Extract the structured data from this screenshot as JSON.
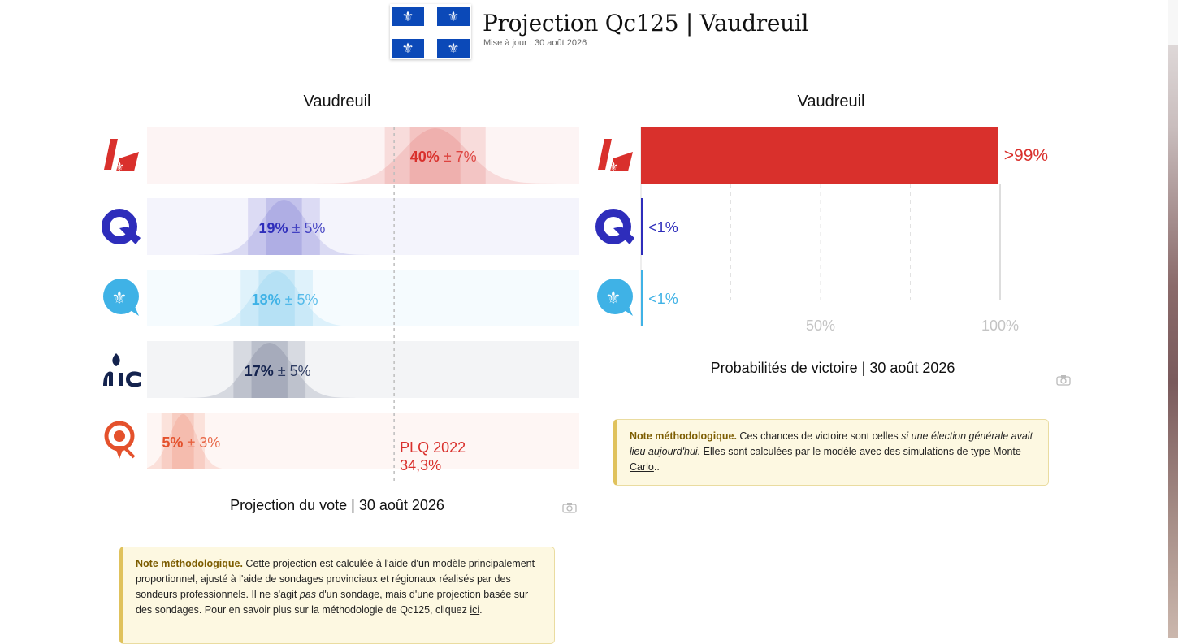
{
  "header": {
    "title": "Projection Qc125 | Vaudreuil",
    "subtitle": "Mise à jour : 30 août 2026",
    "flag_glyph": "⚜",
    "flag_color": "#0b49b8"
  },
  "left": {
    "title": "Vaudreuil",
    "caption": "Projection du vote | 30 août 2026",
    "reference_label_1": "PLQ 2022",
    "reference_label_2": "34,3%",
    "note": {
      "lead": "Note méthodologique.",
      "text1": " Cette projection est calculée à l'aide d'un modèle principalement proportionnel, ajusté à l'aide de sondages provinciaux et régionaux réalisés par des sondeurs professionnels. Il ne s'agit ",
      "em": "pas",
      "text2": " d'un sondage, mais d'une projection basée sur des sondages. Pour en savoir plus sur la méthodologie de Qc125, cliquez ",
      "link": "ici",
      "text3": "."
    }
  },
  "right": {
    "title": "Vaudreuil",
    "caption": "Probabilités de victoire | 30 août 2026",
    "note": {
      "lead": "Note méthodologique.",
      "text1": " Ces chances de victoire sont celles ",
      "em": "si une élection générale avait lieu aujourd'hui.",
      "text2": " Elles sont calculées par le modèle avec des simulations de type ",
      "link": "Monte Carlo",
      "text3": ".."
    }
  },
  "parties": [
    {
      "logo": "plq-logo",
      "color": "#d9302c"
    },
    {
      "logo": "caq-logo",
      "color": "#2e2dbb"
    },
    {
      "logo": "pq-logo",
      "color": "#3fb2e6"
    },
    {
      "logo": "pcq-logo",
      "color": "#14234e"
    },
    {
      "logo": "qs-logo",
      "color": "#e4512c"
    }
  ],
  "chart_data": [
    {
      "type": "bar",
      "title": "Vaudreuil",
      "caption": "Projection du vote | 30 août 2026",
      "series": [
        {
          "value": 40,
          "margin": 7,
          "label": "40%",
          "margin_label": "± 7%",
          "color": "#d9302c"
        },
        {
          "value": 19,
          "margin": 5,
          "label": "19%",
          "margin_label": "± 5%",
          "color": "#2e2dbb"
        },
        {
          "value": 18,
          "margin": 5,
          "label": "18%",
          "margin_label": "± 5%",
          "color": "#3fb2e6"
        },
        {
          "value": 17,
          "margin": 5,
          "label": "17%",
          "margin_label": "± 5%",
          "color": "#14234e"
        },
        {
          "value": 5,
          "margin": 3,
          "label": "5%",
          "margin_label": "± 3%",
          "color": "#e4512c"
        }
      ],
      "xlim": [
        0,
        60
      ],
      "reference": {
        "value": 34.3,
        "label": "PLQ 2022",
        "value_label": "34,3%"
      }
    },
    {
      "type": "bar",
      "title": "Vaudreuil",
      "caption": "Probabilités de victoire | 30 août 2026",
      "series": [
        {
          "value": 99.5,
          "label": ">99%",
          "color": "#d9302c"
        },
        {
          "value": 0.5,
          "label": "<1%",
          "color": "#2e2dbb"
        },
        {
          "value": 0.5,
          "label": "<1%",
          "color": "#3fb2e6"
        }
      ],
      "xlim": [
        0,
        100
      ],
      "gridlines": [
        25,
        50,
        75,
        100
      ],
      "tick_labels": [
        {
          "value": 50,
          "label": "50%"
        },
        {
          "value": 100,
          "label": "100%"
        }
      ]
    }
  ]
}
